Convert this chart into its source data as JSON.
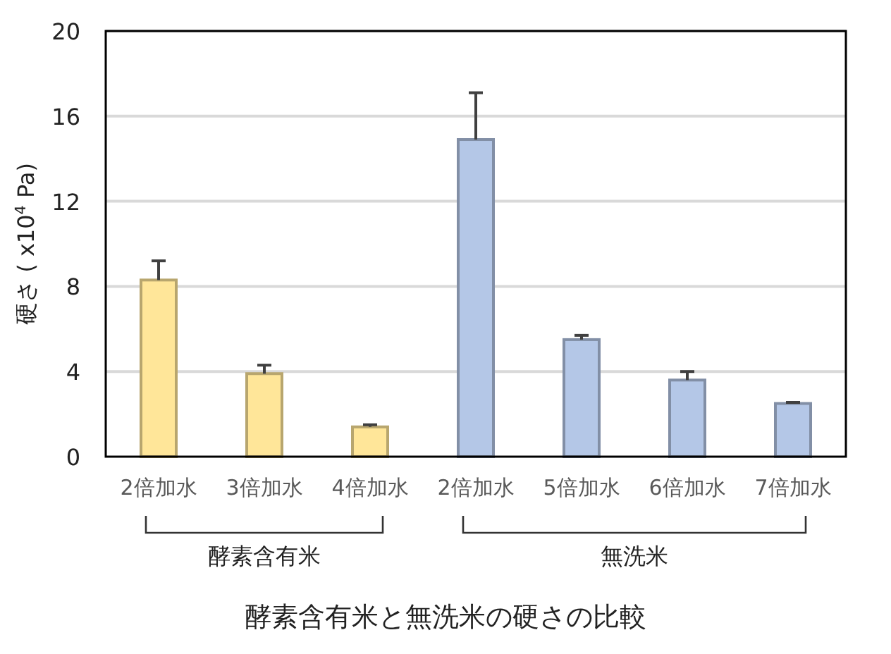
{
  "chart_data": {
    "type": "bar",
    "title": "酵素含有米と無洗米の硬さの比較",
    "ylabel": "硬さ ( x10$^{4}$ Pa)",
    "categories": [
      "2倍加水",
      "3倍加水",
      "4倍加水",
      "2倍加水",
      "5倍加水",
      "6倍加水",
      "7倍加水"
    ],
    "values": [
      8.3,
      3.9,
      1.4,
      14.9,
      5.5,
      3.6,
      2.5
    ],
    "errors": [
      [
        8.3,
        9.2
      ],
      [
        3.9,
        4.3
      ],
      [
        1.4,
        1.5
      ],
      [
        14.9,
        17.1
      ],
      [
        5.5,
        5.7
      ],
      [
        3.6,
        4.0
      ],
      [
        2.5,
        2.55
      ]
    ],
    "colors": [
      "#ffe699",
      "#ffe699",
      "#ffe699",
      "#b4c7e7",
      "#b4c7e7",
      "#b4c7e7",
      "#b4c7e7"
    ],
    "annotations": [
      "酵素含有米",
      "無洗米"
    ],
    "ylim": [
      0,
      20
    ],
    "yticks": [
      0,
      4,
      8,
      12,
      16,
      20
    ],
    "grid": "y"
  }
}
